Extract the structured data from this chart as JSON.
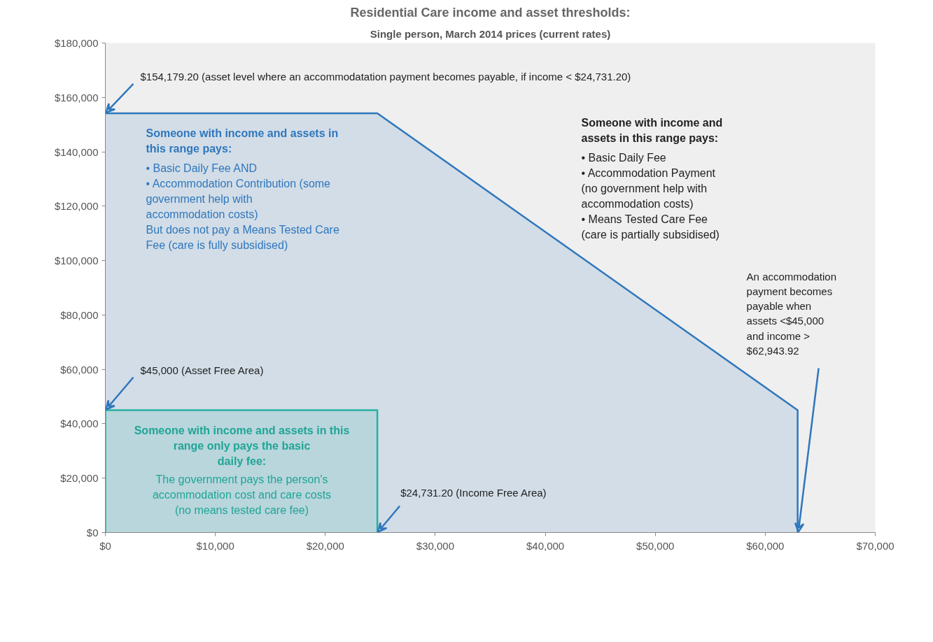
{
  "chart_data": {
    "type": "area",
    "title": "Residential Care income and asset thresholds:",
    "subtitle": "Single person, March 2014 prices (current rates)",
    "series": [
      {
        "color": "#2f77bd",
        "x": [
          0,
          24731.2,
          62943.92,
          62943.92
        ],
        "values": [
          154179.2,
          154179.2,
          45000,
          0
        ]
      },
      {
        "color": "#27b0a0",
        "x": [
          0,
          24731.2,
          24731.2
        ],
        "values": [
          45000,
          45000,
          0
        ]
      }
    ],
    "xlim": [
      0,
      70000
    ],
    "xticks": [
      {
        "value": 0,
        "label": "$0"
      },
      {
        "value": 10000,
        "label": "$10,000"
      },
      {
        "value": 20000,
        "label": "$20,000"
      },
      {
        "value": 30000,
        "label": "$30,000"
      },
      {
        "value": 40000,
        "label": "$40,000"
      },
      {
        "value": 50000,
        "label": "$50,000"
      },
      {
        "value": 60000,
        "label": "$60,000"
      },
      {
        "value": 70000,
        "label": "$70,000"
      }
    ],
    "ylim": [
      0,
      180000
    ],
    "yticks": [
      {
        "value": 0,
        "label": "$0"
      },
      {
        "value": 20000,
        "label": "$20,000"
      },
      {
        "value": 40000,
        "label": "$40,000"
      },
      {
        "value": 60000,
        "label": "$60,000"
      },
      {
        "value": 80000,
        "label": "$80,000"
      },
      {
        "value": 100000,
        "label": "$100,000"
      },
      {
        "value": 120000,
        "label": "$120,000"
      },
      {
        "value": 140000,
        "label": "$140,000"
      },
      {
        "value": 160000,
        "label": "$160,000"
      },
      {
        "value": 180000,
        "label": "$180,000"
      }
    ],
    "grid": false,
    "annotations": [
      {
        "text": "$154,179.20 (asset level where an accommodatation payment becomes payable, if income < $24,731.20)",
        "x": 0,
        "y": 154179.2
      },
      {
        "text": "$45,000 (Asset Free Area)",
        "x": 0,
        "y": 45000
      },
      {
        "text": "$24,731.20 (Income Free Area)",
        "x": 24731.2,
        "y": 0
      },
      {
        "text": "An accommodation\npayment becomes\npayable when\nassets <$45,000\nand income >\n$62,943.92",
        "x": 62943.92,
        "y": 0
      },
      "Someone with income and assets in\nthis range pays:",
      "•  Basic Daily Fee AND\n•  Accommodation Contribution (some\n    government help with\n    accommodation costs)\nBut does not pay a Means Tested Care\nFee (care is fully subsidised)",
      "Someone with income and\nassets in this range pays:",
      "•  Basic Daily Fee\n•  Accommodation Payment\n    (no government help with\n    accommodation costs)\n•  Means Tested Care Fee\n    (care is partially subsidised)",
      "Someone with income and assets in this\nrange only pays the basic\ndaily fee:",
      "The government pays the person's\naccommodation cost and care costs\n(no means tested care fee)"
    ]
  }
}
